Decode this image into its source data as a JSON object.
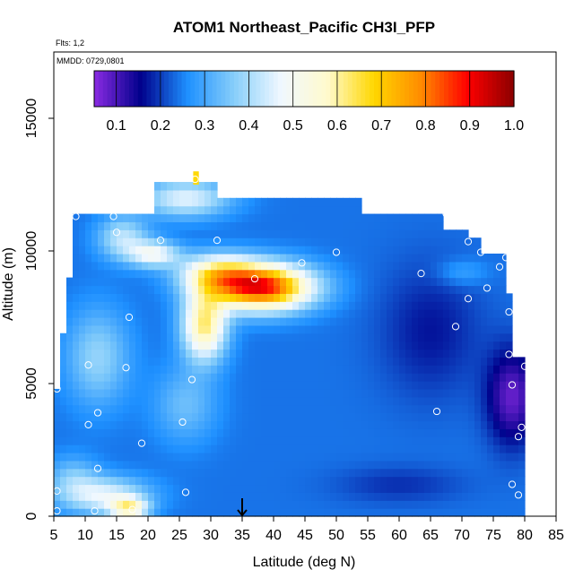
{
  "chart_data": {
    "type": "heatmap",
    "title": "ATOM1 Northeast_Pacific CH3I_PFP",
    "info_lines": [
      "Flts: 1,2",
      "MMDD: 0729,0801"
    ],
    "xlabel": "Latitude (deg N)",
    "ylabel": "Altitude (m)",
    "xlim": [
      5,
      85
    ],
    "ylim": [
      0,
      17500
    ],
    "x_ticks": [
      5,
      10,
      15,
      20,
      25,
      30,
      35,
      40,
      45,
      50,
      55,
      60,
      65,
      70,
      75,
      80,
      85
    ],
    "y_ticks": [
      0,
      5000,
      10000,
      15000
    ],
    "colorbar": {
      "range": [
        0.05,
        1.0
      ],
      "ticks": [
        "0.1",
        "0.2",
        "0.3",
        "0.4",
        "0.5",
        "0.6",
        "0.7",
        "0.8",
        "0.9",
        "1.0"
      ],
      "tick_values": [
        0.1,
        0.2,
        0.3,
        0.4,
        0.5,
        0.6,
        0.7,
        0.8,
        0.9,
        1.0
      ],
      "colors": [
        "#8a2be2",
        "#00008b",
        "#1e90ff",
        "#87cefa",
        "#f0f8ff",
        "#fffacd",
        "#ffd700",
        "#ff8c00",
        "#ff0000",
        "#8b0000"
      ]
    },
    "marker_latitude": 35,
    "grid": false,
    "observations": [
      {
        "x": 5.5,
        "y": 200
      },
      {
        "x": 11.5,
        "y": 200
      },
      {
        "x": 17.5,
        "y": 250
      },
      {
        "x": 5.5,
        "y": 950
      },
      {
        "x": 26,
        "y": 900
      },
      {
        "x": 79,
        "y": 800
      },
      {
        "x": 78,
        "y": 1200
      },
      {
        "x": 12,
        "y": 1800
      },
      {
        "x": 19,
        "y": 2750
      },
      {
        "x": 79,
        "y": 3000
      },
      {
        "x": 79.5,
        "y": 3350
      },
      {
        "x": 10.5,
        "y": 3450
      },
      {
        "x": 25.5,
        "y": 3550
      },
      {
        "x": 12,
        "y": 3900
      },
      {
        "x": 66,
        "y": 3950
      },
      {
        "x": 5.5,
        "y": 4800
      },
      {
        "x": 78,
        "y": 4950
      },
      {
        "x": 27,
        "y": 5150
      },
      {
        "x": 10.5,
        "y": 5700
      },
      {
        "x": 16.5,
        "y": 5600
      },
      {
        "x": 80,
        "y": 5650
      },
      {
        "x": 77.5,
        "y": 6100
      },
      {
        "x": 69,
        "y": 7150
      },
      {
        "x": 17,
        "y": 7500
      },
      {
        "x": 77.5,
        "y": 7700
      },
      {
        "x": 71,
        "y": 8200
      },
      {
        "x": 74,
        "y": 8600
      },
      {
        "x": 37,
        "y": 8950
      },
      {
        "x": 63.5,
        "y": 9150
      },
      {
        "x": 76,
        "y": 9400
      },
      {
        "x": 44.5,
        "y": 9550
      },
      {
        "x": 77,
        "y": 9750
      },
      {
        "x": 50,
        "y": 9950
      },
      {
        "x": 73,
        "y": 9950
      },
      {
        "x": 71,
        "y": 10350
      },
      {
        "x": 22,
        "y": 10400
      },
      {
        "x": 31,
        "y": 10400
      },
      {
        "x": 15,
        "y": 10700
      },
      {
        "x": 8.5,
        "y": 11300
      },
      {
        "x": 14.5,
        "y": 11300
      },
      {
        "x": 67.5,
        "y": 11400
      },
      {
        "x": 27.5,
        "y": 12700
      }
    ]
  }
}
